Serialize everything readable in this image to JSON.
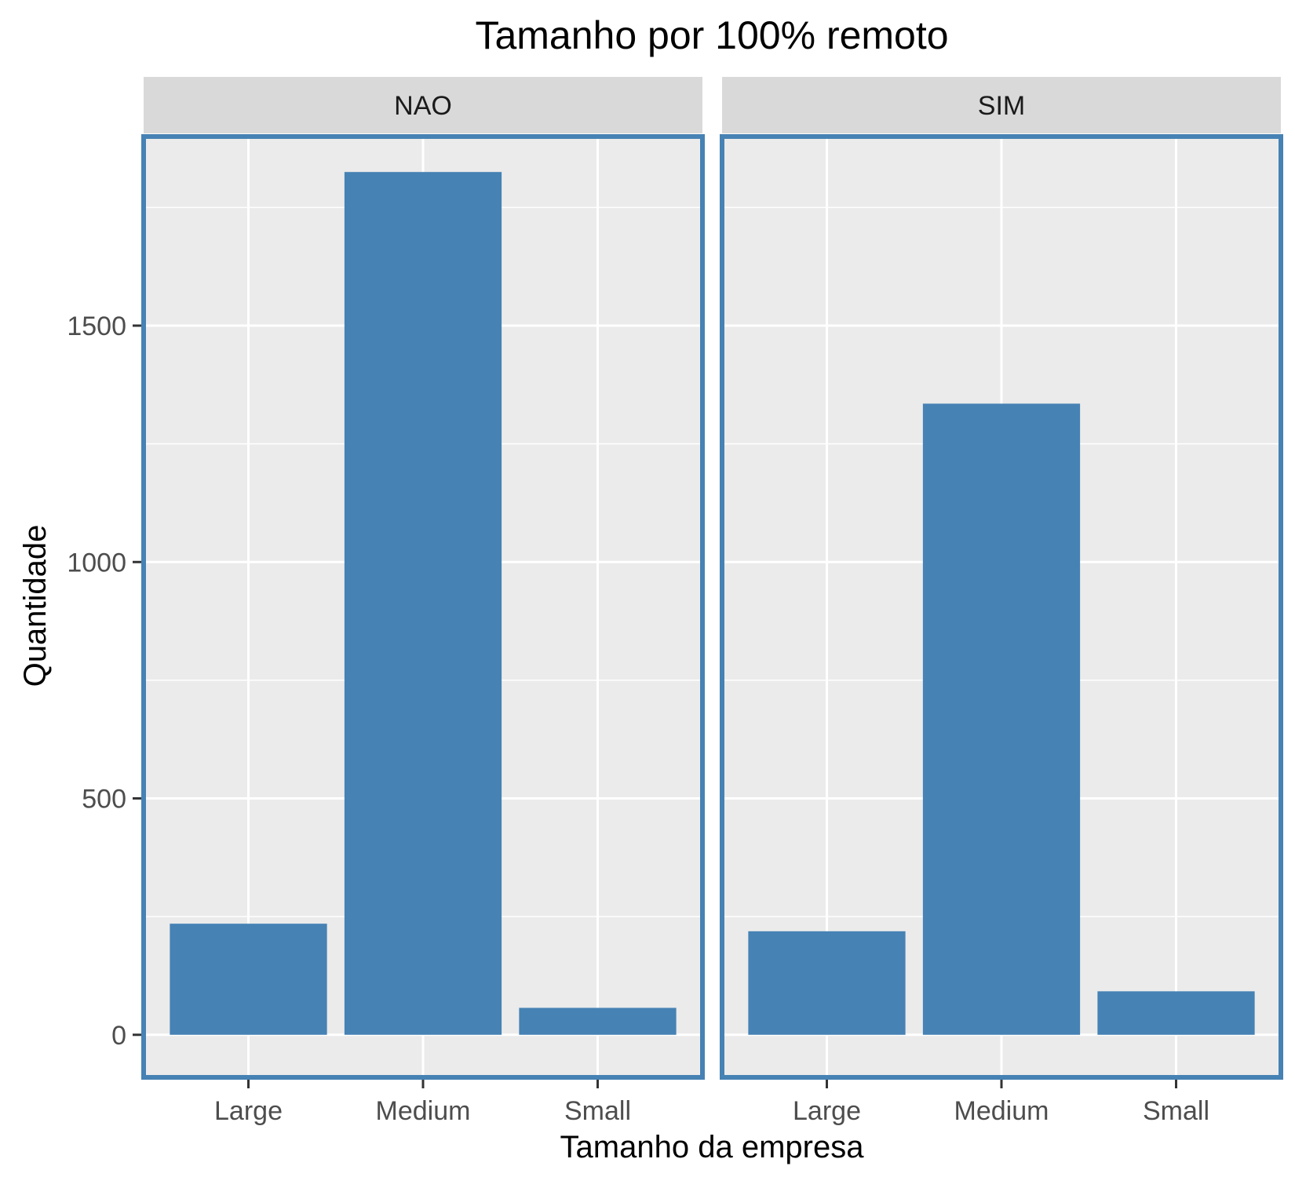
{
  "chart_data": {
    "type": "bar",
    "title": "Tamanho por 100% remoto",
    "xlabel": "Tamanho da empresa",
    "ylabel": "Quantidade",
    "categories": [
      "Large",
      "Medium",
      "Small"
    ],
    "ylim": [
      -90,
      1900
    ],
    "yticks": [
      0,
      500,
      1000,
      1500
    ],
    "grid": true,
    "legend": "none",
    "facets": [
      {
        "label": "NAO",
        "values": [
          235,
          1825,
          57
        ]
      },
      {
        "label": "SIM",
        "values": [
          219,
          1335,
          92
        ]
      }
    ],
    "colors": {
      "bar": "#4682B4",
      "panel_background": "#EBEBEB",
      "panel_border": "#4682B4",
      "strip_background": "#D9D9D9",
      "grid": "#FFFFFF",
      "tick_text": "#4D4D4D"
    }
  }
}
